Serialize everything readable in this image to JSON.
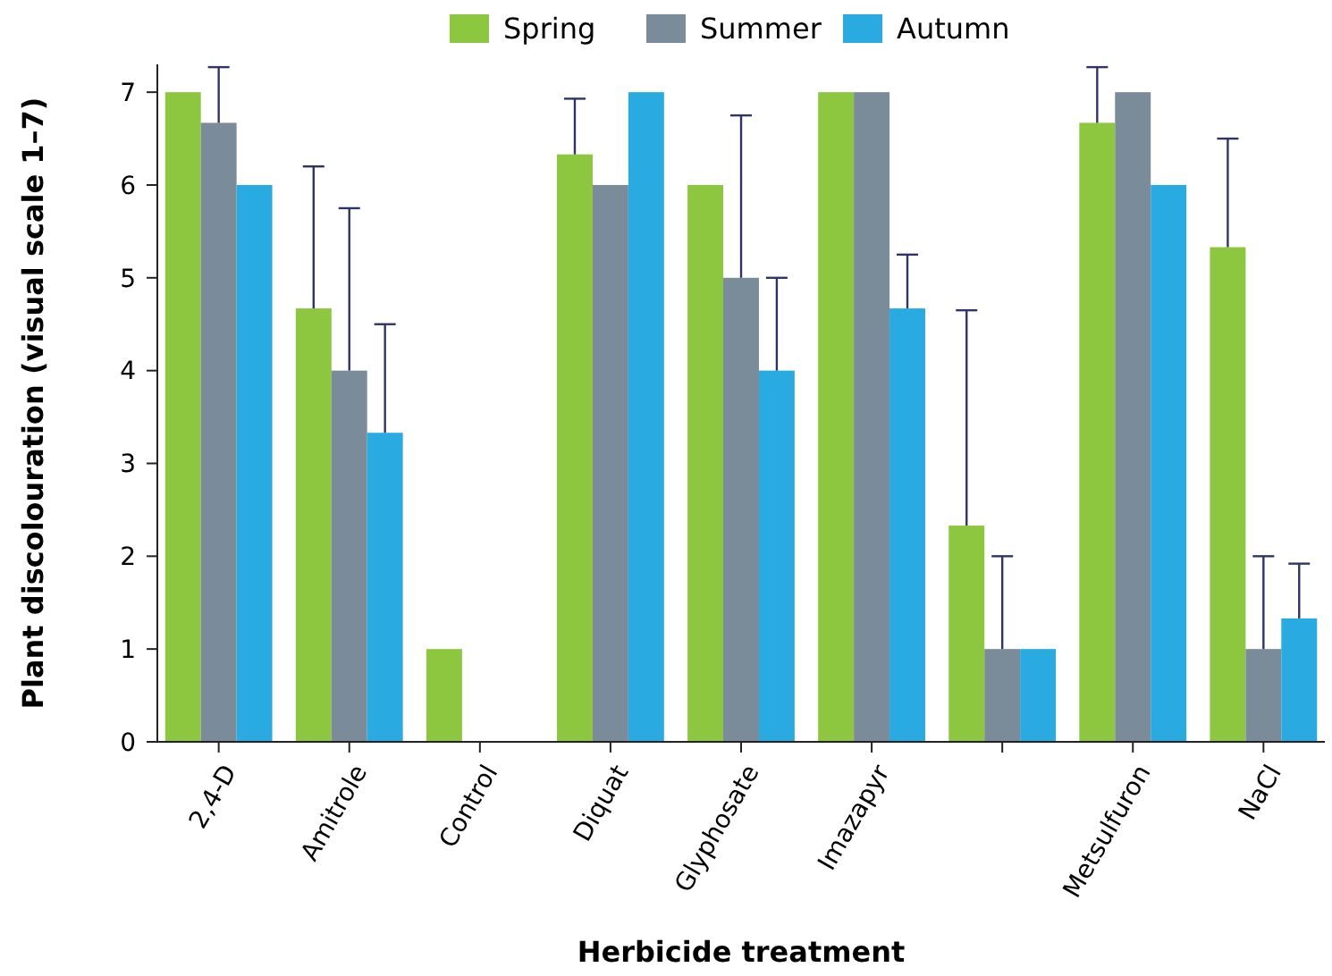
{
  "chart_data": {
    "type": "bar",
    "xlabel": "Herbicide treatment",
    "ylabel": "Plant discolouration (visual scale 1–7)",
    "categories": [
      "2,4-D",
      "Amitrole",
      "Control",
      "Diquat",
      "Glyphosate",
      "Imazapyr",
      null,
      "Metsulfuron",
      "NaCl"
    ],
    "series": [
      {
        "name": "Spring",
        "color": "#8dc63f",
        "values": [
          7,
          4.67,
          1,
          6.33,
          6,
          7,
          2.33,
          6.67,
          5.33
        ],
        "errors": [
          null,
          [
            4.67,
            6.2
          ],
          null,
          [
            6.33,
            6.93
          ],
          null,
          null,
          [
            2.33,
            4.65
          ],
          [
            6.67,
            7.27
          ],
          [
            5.33,
            6.5
          ]
        ]
      },
      {
        "name": "Summer",
        "color": "#7a8c99",
        "values": [
          6.67,
          4,
          0,
          6,
          5,
          7,
          1,
          7,
          1
        ],
        "errors": [
          [
            6.67,
            7.27
          ],
          [
            4,
            5.75
          ],
          null,
          null,
          [
            5,
            6.75
          ],
          null,
          [
            1,
            2
          ],
          null,
          [
            1,
            2
          ]
        ]
      },
      {
        "name": "Autumn",
        "color": "#29abe2",
        "values": [
          6,
          3.33,
          0,
          7,
          4,
          4.67,
          1,
          6,
          1.33
        ],
        "errors": [
          null,
          [
            3.33,
            4.5
          ],
          null,
          null,
          [
            4,
            5
          ],
          [
            4.67,
            5.25
          ],
          null,
          null,
          [
            1.33,
            1.92
          ]
        ]
      }
    ],
    "ylim": [
      0,
      7.3
    ],
    "yticks": [
      0,
      1,
      2,
      3,
      4,
      5,
      6,
      7
    ],
    "grid": false,
    "legend": "top"
  }
}
